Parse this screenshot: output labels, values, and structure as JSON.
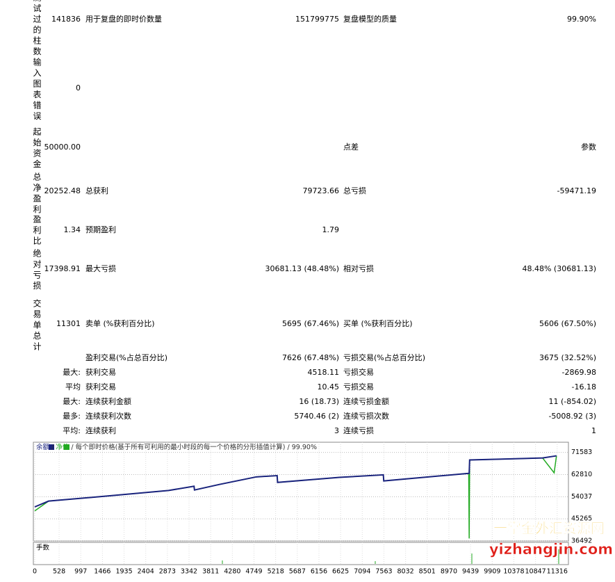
{
  "report": {
    "rows": [
      {
        "label": "测试过的柱数",
        "value": "141836",
        "name1": "用于复盘的即时价数量",
        "value1": "151799775",
        "name2": "复盘模型的质量",
        "value2": "99.90%"
      },
      {
        "label": "输入图表错误",
        "value": "0"
      },
      {
        "label": "起始资金",
        "value": "50000.00",
        "name2": "点差",
        "value2": "参数"
      },
      {
        "label": "总净盈利",
        "value": "20252.48",
        "name1": "总获利",
        "value1": "79723.66",
        "name2": "总亏损",
        "value2": "-59471.19"
      },
      {
        "label": "盈利比",
        "value": "1.34",
        "name1": "预期盈利",
        "value1": "1.79"
      },
      {
        "label": "绝对亏损",
        "value": "17398.91",
        "name1": "最大亏损",
        "value1": "30681.13 (48.48%)",
        "name2": "相对亏损",
        "value2": "48.48% (30681.13)"
      },
      {
        "label": "交易单总计",
        "value": "11301",
        "name1": "卖单 (%获利百分比)",
        "value1": "5695 (67.46%)",
        "name2": "买单 (%获利百分比)",
        "value2": "5606 (67.50%)"
      }
    ],
    "stats": [
      {
        "name1": "盈利交易(%占总百分比)",
        "value1": "7626 (67.48%)",
        "name2": "亏损交易(%占总百分比)",
        "value2": "3675 (32.52%)"
      },
      {
        "prefix": "最大:",
        "name1": "获利交易",
        "value1": "4518.11",
        "name2": "亏损交易",
        "value2": "-2869.98"
      },
      {
        "prefix": "平均",
        "name1": "获利交易",
        "value1": "10.45",
        "name2": "亏损交易",
        "value2": "-16.18"
      },
      {
        "prefix": "最大:",
        "name1": "连续获利金额",
        "value1": "16 (18.73)",
        "name2": "连续亏损金额",
        "value2": "11 (-854.02)"
      },
      {
        "prefix": "最多:",
        "name1": "连续获利次数",
        "value1": "5740.46 (2)",
        "name2": "连续亏损次数",
        "value2": "-5008.92 (3)"
      },
      {
        "prefix": "平均:",
        "name1": "连续获利",
        "value1": "3",
        "name2": "连续亏损",
        "value2": "1"
      }
    ]
  },
  "chart_data": {
    "type": "line",
    "separator": "/",
    "description": "每个即时价格(基于所有可利用的最小时段的每一个价格的分形插值计算)",
    "quality": "99.90%",
    "lots_label": "手数",
    "x": [
      0,
      300,
      1500,
      2900,
      3450,
      3460,
      4000,
      4800,
      5250,
      5260,
      6600,
      7550,
      7560,
      9400,
      9410,
      9420,
      10400,
      11000,
      11250,
      11301
    ],
    "series": [
      {
        "name": "净值",
        "color": "#22aa22",
        "values": [
          48400,
          52300,
          54200,
          56500,
          58200,
          56700,
          58900,
          61900,
          62400,
          59700,
          61700,
          62700,
          60300,
          63300,
          37500,
          68600,
          69100,
          69400,
          63500,
          70252.48
        ]
      },
      {
        "name": "余额",
        "color": "#1a237e",
        "values": [
          50000,
          52300,
          54200,
          56500,
          58200,
          56700,
          58900,
          61900,
          62400,
          59700,
          61700,
          62700,
          60300,
          63300,
          63300,
          68600,
          69100,
          69400,
          70100,
          70252.48
        ]
      }
    ],
    "xlim": [
      0,
      11560
    ],
    "ylim": [
      36492,
      75630
    ],
    "xticks": [
      0,
      528,
      997,
      1466,
      1935,
      2404,
      2873,
      3342,
      3811,
      4280,
      4749,
      5218,
      5687,
      6156,
      6625,
      7094,
      7563,
      8032,
      8501,
      8970,
      9439,
      9909,
      10378,
      10847,
      11316
    ],
    "yticks": [
      36492,
      45265,
      54037,
      62810,
      71583
    ],
    "grid": true
  },
  "watermark": {
    "title": "一掌金外汇资源网",
    "url": "yizhangjin.com"
  }
}
